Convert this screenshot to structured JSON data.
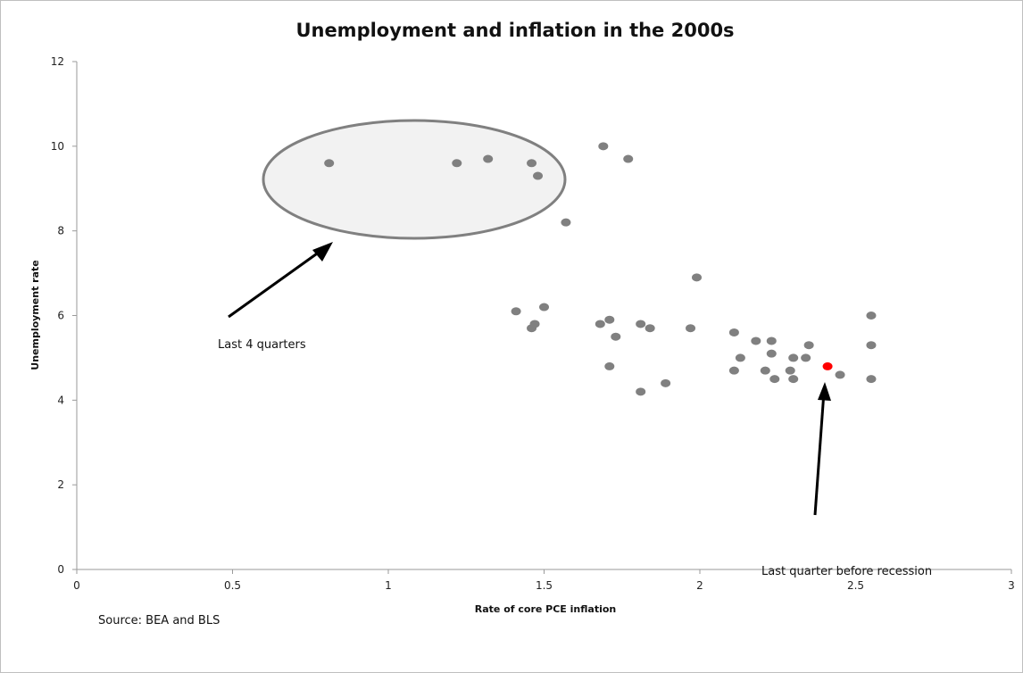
{
  "chart_data": {
    "type": "scatter",
    "title": "Unemployment and inflation in the 2000s",
    "xlabel": "Rate of core PCE inflation",
    "ylabel": "Unemployment rate",
    "xlim": [
      0,
      3
    ],
    "ylim": [
      0,
      12
    ],
    "x_ticks": [
      0,
      0.5,
      1,
      1.5,
      2,
      2.5,
      3
    ],
    "x_tick_labels": [
      "0",
      "0.5",
      "1",
      "1.5",
      "2",
      "2.5",
      "3"
    ],
    "y_ticks": [
      0,
      2,
      4,
      6,
      8,
      10,
      12
    ],
    "y_tick_labels": [
      "0",
      "2",
      "4",
      "6",
      "8",
      "10",
      "12"
    ],
    "grid": false,
    "point_color": "#808080",
    "highlight_color": "#ff0000",
    "points": [
      {
        "x": 0.81,
        "y": 9.6
      },
      {
        "x": 1.22,
        "y": 9.6
      },
      {
        "x": 1.32,
        "y": 9.7
      },
      {
        "x": 1.46,
        "y": 9.6
      },
      {
        "x": 1.48,
        "y": 9.3
      },
      {
        "x": 1.69,
        "y": 10.0
      },
      {
        "x": 1.77,
        "y": 9.7
      },
      {
        "x": 1.57,
        "y": 8.2
      },
      {
        "x": 1.99,
        "y": 6.9
      },
      {
        "x": 1.41,
        "y": 6.1
      },
      {
        "x": 1.5,
        "y": 6.2
      },
      {
        "x": 1.47,
        "y": 5.8
      },
      {
        "x": 1.46,
        "y": 5.7
      },
      {
        "x": 1.68,
        "y": 5.8
      },
      {
        "x": 1.71,
        "y": 5.9
      },
      {
        "x": 1.73,
        "y": 5.5
      },
      {
        "x": 1.81,
        "y": 5.8
      },
      {
        "x": 1.84,
        "y": 5.7
      },
      {
        "x": 1.97,
        "y": 5.7
      },
      {
        "x": 1.71,
        "y": 4.8
      },
      {
        "x": 1.81,
        "y": 4.2
      },
      {
        "x": 1.89,
        "y": 4.4
      },
      {
        "x": 2.11,
        "y": 5.6
      },
      {
        "x": 2.18,
        "y": 5.4
      },
      {
        "x": 2.23,
        "y": 5.4
      },
      {
        "x": 2.13,
        "y": 5.0
      },
      {
        "x": 2.23,
        "y": 5.1
      },
      {
        "x": 2.11,
        "y": 4.7
      },
      {
        "x": 2.21,
        "y": 4.7
      },
      {
        "x": 2.24,
        "y": 4.5
      },
      {
        "x": 2.3,
        "y": 5.0
      },
      {
        "x": 2.34,
        "y": 5.0
      },
      {
        "x": 2.35,
        "y": 5.3
      },
      {
        "x": 2.29,
        "y": 4.7
      },
      {
        "x": 2.3,
        "y": 4.5
      },
      {
        "x": 2.45,
        "y": 4.6
      },
      {
        "x": 2.55,
        "y": 6.0
      },
      {
        "x": 2.55,
        "y": 5.3
      },
      {
        "x": 2.55,
        "y": 4.5
      },
      {
        "x": 2.41,
        "y": 4.8,
        "highlight": true
      }
    ],
    "annotations": [
      {
        "text": "Last 4 quarters"
      },
      {
        "text": "Last quarter before recession"
      },
      {
        "text": "Source: BEA and BLS"
      }
    ]
  }
}
